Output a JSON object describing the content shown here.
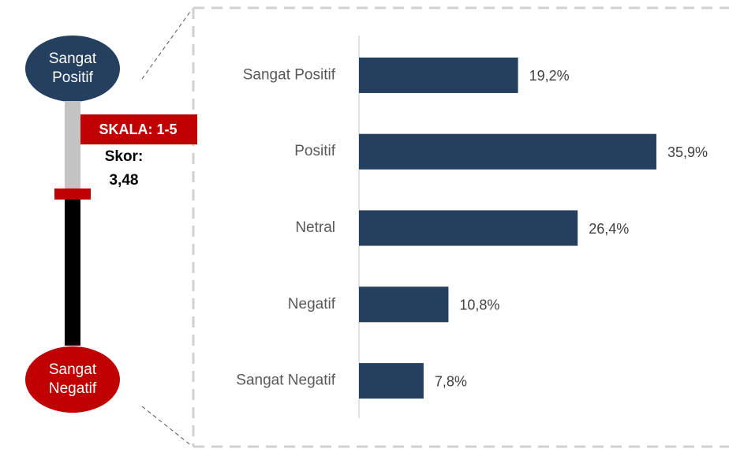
{
  "chart_data": {
    "type": "barh",
    "categories": [
      "Sangat Positif",
      "Positif",
      "Netral",
      "Negatif",
      "Sangat Negatif"
    ],
    "values": [
      19.2,
      35.9,
      26.4,
      10.8,
      7.8
    ],
    "value_labels": [
      "19,2%",
      "35,9%",
      "26,4%",
      "10,8%",
      "7,8%"
    ],
    "color": "#253f5f",
    "xlim": [
      0,
      44
    ]
  },
  "indicator": {
    "top_label": "Sangat Positif",
    "bottom_label": "Sangat Negatif",
    "scale_label": "SKALA: 1-5",
    "range": [
      1,
      5
    ],
    "score_title": "Skor:",
    "score": 3.48,
    "score_label": "3,48"
  }
}
